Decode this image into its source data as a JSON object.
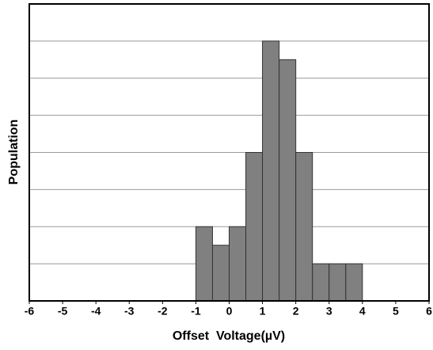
{
  "chart_data": {
    "type": "histogram",
    "xlabel": "Offset  Voltage(µV)",
    "ylabel": "Population",
    "bins": [
      -1,
      -0.5,
      0,
      0.5,
      1,
      1.5,
      2,
      2.5,
      3,
      3.5,
      4
    ],
    "counts": [
      2,
      1.5,
      2,
      4,
      7,
      6.5,
      4,
      1,
      1,
      1
    ],
    "color": "#808080",
    "xlim": [
      -6,
      6
    ],
    "xticks": [
      -6,
      -5,
      -4,
      -3,
      -2,
      -1,
      0,
      1,
      2,
      3,
      4,
      5,
      6
    ],
    "ylim": [
      0,
      8
    ],
    "yticks": [
      1,
      2,
      3,
      4,
      5,
      6,
      7
    ],
    "grid": true
  }
}
